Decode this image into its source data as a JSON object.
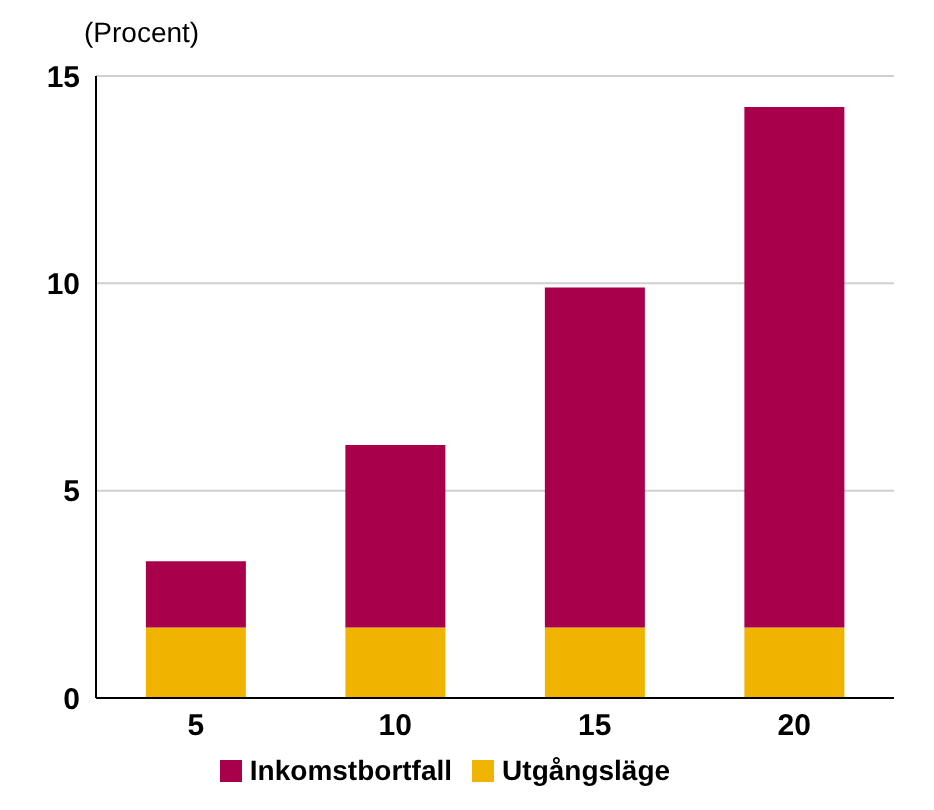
{
  "chart_data": {
    "type": "bar",
    "ylabel": "(Procent)",
    "categories": [
      "5",
      "10",
      "15",
      "20"
    ],
    "stacked": true,
    "series": [
      {
        "name": "Utgångsläge",
        "color": "#f0b400",
        "values": [
          1.7,
          1.7,
          1.7,
          1.7
        ]
      },
      {
        "name": "Inkomstbortfall",
        "color": "#a8004a",
        "values": [
          1.6,
          4.4,
          8.2,
          12.55
        ]
      }
    ],
    "ylim": [
      0,
      15
    ],
    "yticks": [
      0,
      5,
      10,
      15
    ],
    "grid": "y",
    "legend": "bottom"
  }
}
